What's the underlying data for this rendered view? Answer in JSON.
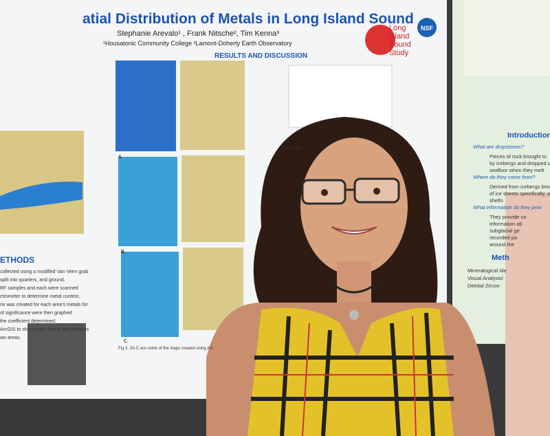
{
  "poster": {
    "title": "atial Distribution of Metals in Long Island Sound",
    "authors": "Stephanie Arevalo¹ , Frank Nitsche², Tim Kenna³",
    "affiliations": "¹Housatonic Community College  ²Lamont-Doherty Earth Observatory",
    "section": "RESULTS AND DISCUSSION",
    "logo": [
      "Long",
      "Island",
      "Sound",
      "Study"
    ],
    "nsf": "NSF",
    "left_text": [
      "ETHODS",
      "collected using a modified Van Veen grab",
      "split into quarters, and ground.",
      "RF samples and each were scanned",
      "ctrometer to determine metal content.",
      "rix was created for each area's metals for",
      "of significance were then graphed",
      "the coefficient determined.",
      "ArcGIS to show more clearly any patterns",
      "wo areas."
    ],
    "fig_labels": [
      "A.",
      "B.",
      "C."
    ],
    "fig3_caption": "Fig 3. 3A-C are some of the maps created using Arc",
    "fig4_caption": "Fig 4. Zinc"
  },
  "side_poster": {
    "heading": "Introduction",
    "lines": [
      "What are dropstones?",
      "Pieces of rock brought to",
      "by icebergs and dropped u",
      "seafloor when they melt",
      "Where do they come from?",
      "Derived from icebergs brea",
      "of ice sheets specifically, p",
      "shelfs",
      "What information do they prov",
      "They provide co",
      "information ab",
      "subglacial ge",
      "recorded pa",
      "around the"
    ],
    "methods": "Meth",
    "method_lines": [
      "Mineralogical Ide",
      "Visual Analysis/",
      "Detrital Zircon"
    ]
  }
}
